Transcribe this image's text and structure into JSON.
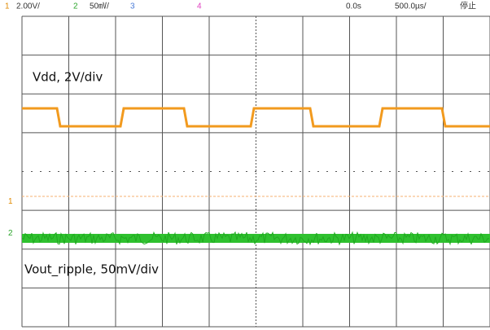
{
  "header": {
    "ch1": "1",
    "ch1_scale": "2.00V/",
    "ch2": "2",
    "ch2_scale": "50㎷/",
    "ch3": "3",
    "ch4": "4",
    "delay": "0.0s",
    "timebase": "500.0µs/",
    "status": "停止"
  },
  "markers": {
    "ch1": "1",
    "ch2": "2"
  },
  "annotations": {
    "vdd": "Vdd, 2V/div",
    "vout": "Vout_ripple, 50mV/div"
  }
}
